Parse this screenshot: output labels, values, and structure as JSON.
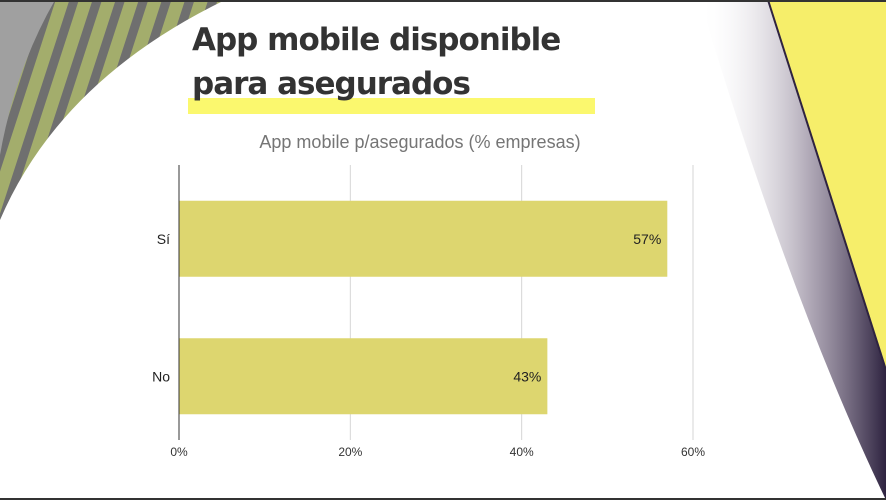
{
  "slide": {
    "title_line1": "App mobile disponible",
    "title_line2": "para asegurados",
    "highlight_color": "#fbf86e",
    "accent_yellow": "#f6ee6a"
  },
  "chart_data": {
    "type": "bar",
    "orientation": "horizontal",
    "title": "App mobile p/asegurados (% empresas)",
    "categories": [
      "Sí",
      "No"
    ],
    "values": [
      57,
      43
    ],
    "data_labels": [
      "57%",
      "43%"
    ],
    "xlim": [
      0,
      60
    ],
    "xticks": [
      0,
      20,
      40,
      60
    ],
    "xtick_labels": [
      "0%",
      "20%",
      "40%",
      "60%"
    ],
    "xlabel": "",
    "ylabel": "",
    "grid": true,
    "bar_color": "#ddd66f"
  }
}
